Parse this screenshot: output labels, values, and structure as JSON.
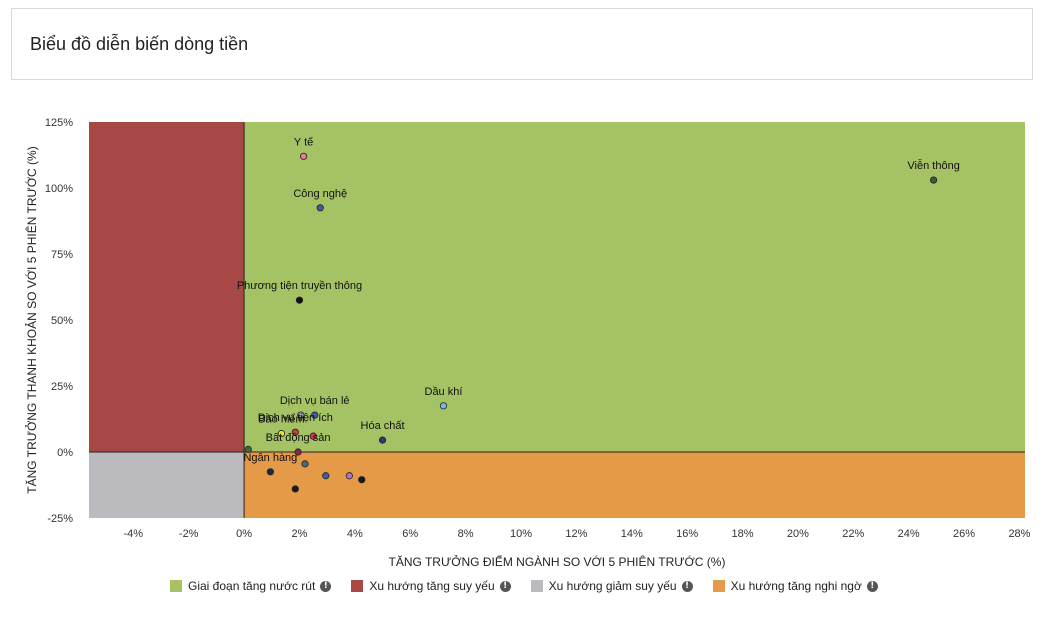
{
  "page": {
    "title": "Biểu đồ diễn biến dòng tiền"
  },
  "chart_data": {
    "type": "scatter",
    "title": "",
    "xlabel": "TĂNG TRƯỞNG ĐIỂM NGÀNH SO VỚI 5 PHIÊN TRƯỚC (%)",
    "ylabel": "TĂNG TRƯỞNG THANH KHOẢN SO VỚI 5 PHIÊN TRƯỚC (%)",
    "xlim": [
      -5.6,
      28.2
    ],
    "ylim": [
      -25,
      125
    ],
    "x_ticks": [
      -4,
      -2,
      0,
      2,
      4,
      6,
      8,
      10,
      12,
      14,
      16,
      18,
      20,
      22,
      24,
      26,
      28
    ],
    "x_tick_labels": [
      "-4%",
      "-2%",
      "0%",
      "2%",
      "4%",
      "6%",
      "8%",
      "10%",
      "12%",
      "14%",
      "16%",
      "18%",
      "20%",
      "22%",
      "24%",
      "26%",
      "28%"
    ],
    "y_ticks": [
      -25,
      0,
      25,
      50,
      75,
      100,
      125
    ],
    "y_tick_labels": [
      "-25%",
      "0%",
      "25%",
      "50%",
      "75%",
      "100%",
      "125%"
    ],
    "grid": false,
    "legend_position": "bottom",
    "quadrants": [
      {
        "name": "Giai đoạn tăng nước rút",
        "color": "#a5c264",
        "x_range": [
          0,
          28.2
        ],
        "y_range": [
          0,
          125
        ]
      },
      {
        "name": "Xu hướng tăng suy yếu",
        "color": "#a84846",
        "x_range": [
          -5.6,
          0
        ],
        "y_range": [
          0,
          125
        ]
      },
      {
        "name": "Xu hướng giảm suy yếu",
        "color": "#bbbbbf",
        "x_range": [
          -5.6,
          0
        ],
        "y_range": [
          -25,
          0
        ]
      },
      {
        "name": "Xu hướng tăng nghi ngờ",
        "color": "#e59a47",
        "x_range": [
          0,
          28.2
        ],
        "y_range": [
          -25,
          0
        ]
      }
    ],
    "points": [
      {
        "name": "Y tế",
        "x": 2.15,
        "y": 112,
        "color": "#e57ca0",
        "show_label": true
      },
      {
        "name": "Công nghệ",
        "x": 2.75,
        "y": 92.5,
        "color": "#3f5aa8",
        "show_label": true
      },
      {
        "name": "Viễn thông",
        "x": 24.9,
        "y": 103,
        "color": "#3a5a3a",
        "show_label": true
      },
      {
        "name": "Phương tiện truyền thông",
        "x": 2.0,
        "y": 57.5,
        "color": "#111111",
        "show_label": true
      },
      {
        "name": "Dầu khí",
        "x": 7.2,
        "y": 17.5,
        "color": "#6fb8e8",
        "show_label": true
      },
      {
        "name": "Dịch vụ bán lẻ",
        "x": 2.55,
        "y": 14.0,
        "color": "#3f5aa8",
        "show_label": true
      },
      {
        "name": "",
        "x": 2.05,
        "y": 14.0,
        "color": "#9aa0a8",
        "show_label": false
      },
      {
        "name": "Dịch vụ tiện ích",
        "x": 1.85,
        "y": 7.5,
        "color": "#c04040",
        "show_label": true
      },
      {
        "name": "",
        "x": 2.5,
        "y": 6.0,
        "color": "#d0385a",
        "show_label": false
      },
      {
        "name": "Bảo hiểm",
        "x": 1.35,
        "y": 7.0,
        "color": "#f0e020",
        "show_label": true
      },
      {
        "name": "Hóa chất",
        "x": 5.0,
        "y": 4.5,
        "color": "#2a3a78",
        "show_label": true
      },
      {
        "name": "",
        "x": 0.15,
        "y": 1.0,
        "color": "#446644",
        "show_label": false
      },
      {
        "name": "Bất động sản",
        "x": 1.95,
        "y": 0.0,
        "color": "#7a2a4a",
        "show_label": true
      },
      {
        "name": "",
        "x": 2.2,
        "y": -4.5,
        "color": "#4a6a7a",
        "show_label": false
      },
      {
        "name": "Ngân hàng",
        "x": 0.95,
        "y": -7.5,
        "color": "#1a2a4a",
        "show_label": true
      },
      {
        "name": "",
        "x": 2.95,
        "y": -9.0,
        "color": "#3f5aa8",
        "show_label": false
      },
      {
        "name": "",
        "x": 3.8,
        "y": -9.0,
        "color": "#b070c8",
        "show_label": false
      },
      {
        "name": "",
        "x": 4.25,
        "y": -10.5,
        "color": "#1a1a1a",
        "show_label": false
      },
      {
        "name": "",
        "x": 1.85,
        "y": -14.0,
        "color": "#1a1a1a",
        "show_label": false
      }
    ]
  },
  "legend": {
    "items": [
      {
        "label": "Giai đoạn tăng nước rút",
        "color": "#a5c264"
      },
      {
        "label": "Xu hướng tăng suy yếu",
        "color": "#a84846"
      },
      {
        "label": "Xu hướng giảm suy yếu",
        "color": "#bbbbbf"
      },
      {
        "label": "Xu hướng tăng nghi ngờ",
        "color": "#e59a47"
      }
    ],
    "info_icon": "info-icon",
    "info_glyph": "!"
  }
}
